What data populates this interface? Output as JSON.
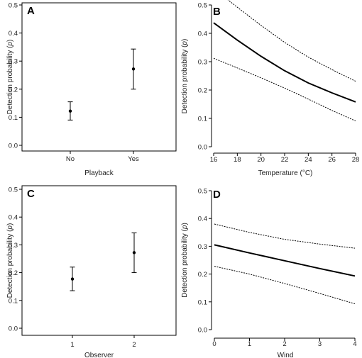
{
  "chart_data": [
    {
      "panel": "A",
      "type": "scatter",
      "categories": [
        "No",
        "Yes"
      ],
      "series": [
        {
          "values": [
            0.122,
            0.272
          ],
          "lower": [
            0.09,
            0.2
          ],
          "upper": [
            0.155,
            0.343
          ]
        }
      ],
      "xlabel": "Playback",
      "ylabel": "Detection probability (p)",
      "ylim": [
        0,
        0.5
      ],
      "yticks": [
        "0.0",
        "0.1",
        "0.2",
        "0.3",
        "0.4",
        "0.5"
      ]
    },
    {
      "panel": "B",
      "type": "line",
      "x": [
        16,
        18,
        20,
        22,
        24,
        26,
        28
      ],
      "series": [
        {
          "role": "estimate",
          "values": [
            0.437,
            0.376,
            0.319,
            0.268,
            0.225,
            0.19,
            0.158
          ]
        },
        {
          "role": "upper",
          "values": [
            0.558,
            0.492,
            0.428,
            0.368,
            0.316,
            0.272,
            0.231
          ]
        },
        {
          "role": "lower",
          "values": [
            0.312,
            0.278,
            0.243,
            0.207,
            0.168,
            0.128,
            0.091
          ]
        }
      ],
      "xlabel": "Temperature (°C)",
      "ylabel": "Detection probability (p)",
      "xlim": [
        16,
        28
      ],
      "xticks": [
        "16",
        "18",
        "20",
        "22",
        "24",
        "26",
        "28"
      ],
      "ylim": [
        0,
        0.5
      ],
      "yticks": [
        "0.0",
        "0.1",
        "0.2",
        "0.3",
        "0.4",
        "0.5"
      ]
    },
    {
      "panel": "C",
      "type": "scatter",
      "categories": [
        "1",
        "2"
      ],
      "series": [
        {
          "values": [
            0.177,
            0.272
          ],
          "lower": [
            0.135,
            0.2
          ],
          "upper": [
            0.22,
            0.343
          ]
        }
      ],
      "xlabel": "Observer",
      "ylabel": "Detection probability (p)",
      "ylim": [
        0,
        0.5
      ],
      "yticks": [
        "0.0",
        "0.1",
        "0.2",
        "0.3",
        "0.4",
        "0.5"
      ]
    },
    {
      "panel": "D",
      "type": "line",
      "x": [
        0,
        1,
        2,
        3,
        4
      ],
      "series": [
        {
          "role": "estimate",
          "values": [
            0.305,
            0.276,
            0.248,
            0.22,
            0.193
          ]
        },
        {
          "role": "upper",
          "values": [
            0.38,
            0.35,
            0.325,
            0.308,
            0.293
          ]
        },
        {
          "role": "lower",
          "values": [
            0.228,
            0.2,
            0.166,
            0.13,
            0.093
          ]
        }
      ],
      "xlabel": "Wind",
      "ylabel": "Detection probability (p)",
      "xlim": [
        0,
        4
      ],
      "xticks": [
        "0",
        "1",
        "2",
        "3",
        "4"
      ],
      "ylim": [
        0,
        0.5
      ],
      "yticks": [
        "0.0",
        "0.1",
        "0.2",
        "0.3",
        "0.4",
        "0.5"
      ]
    }
  ]
}
